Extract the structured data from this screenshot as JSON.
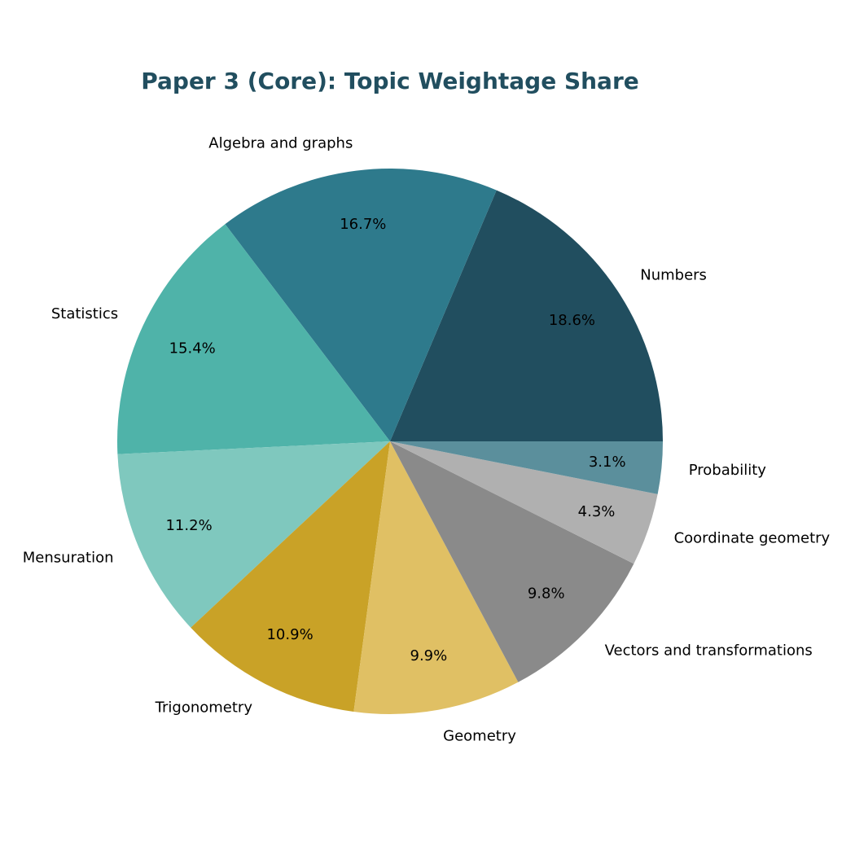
{
  "chart_data": {
    "type": "pie",
    "title": "Paper 3 (Core): Topic Weightage Share",
    "categories": [
      "Numbers",
      "Algebra and graphs",
      "Statistics",
      "Mensuration",
      "Trigonometry",
      "Geometry",
      "Vectors and transformations",
      "Coordinate geometry",
      "Probability"
    ],
    "values": [
      18.6,
      16.7,
      15.4,
      11.2,
      10.9,
      9.9,
      9.8,
      4.3,
      3.1
    ],
    "value_labels": [
      "18.6%",
      "16.7%",
      "15.4%",
      "11.2%",
      "10.9%",
      "9.9%",
      "9.8%",
      "4.3%",
      "3.1%"
    ],
    "colors": [
      "#214e5f",
      "#2e7a8c",
      "#4fb3a9",
      "#7fc8be",
      "#c9a227",
      "#e0c064",
      "#8a8a8a",
      "#b0b0b0",
      "#5b8f9c"
    ]
  }
}
